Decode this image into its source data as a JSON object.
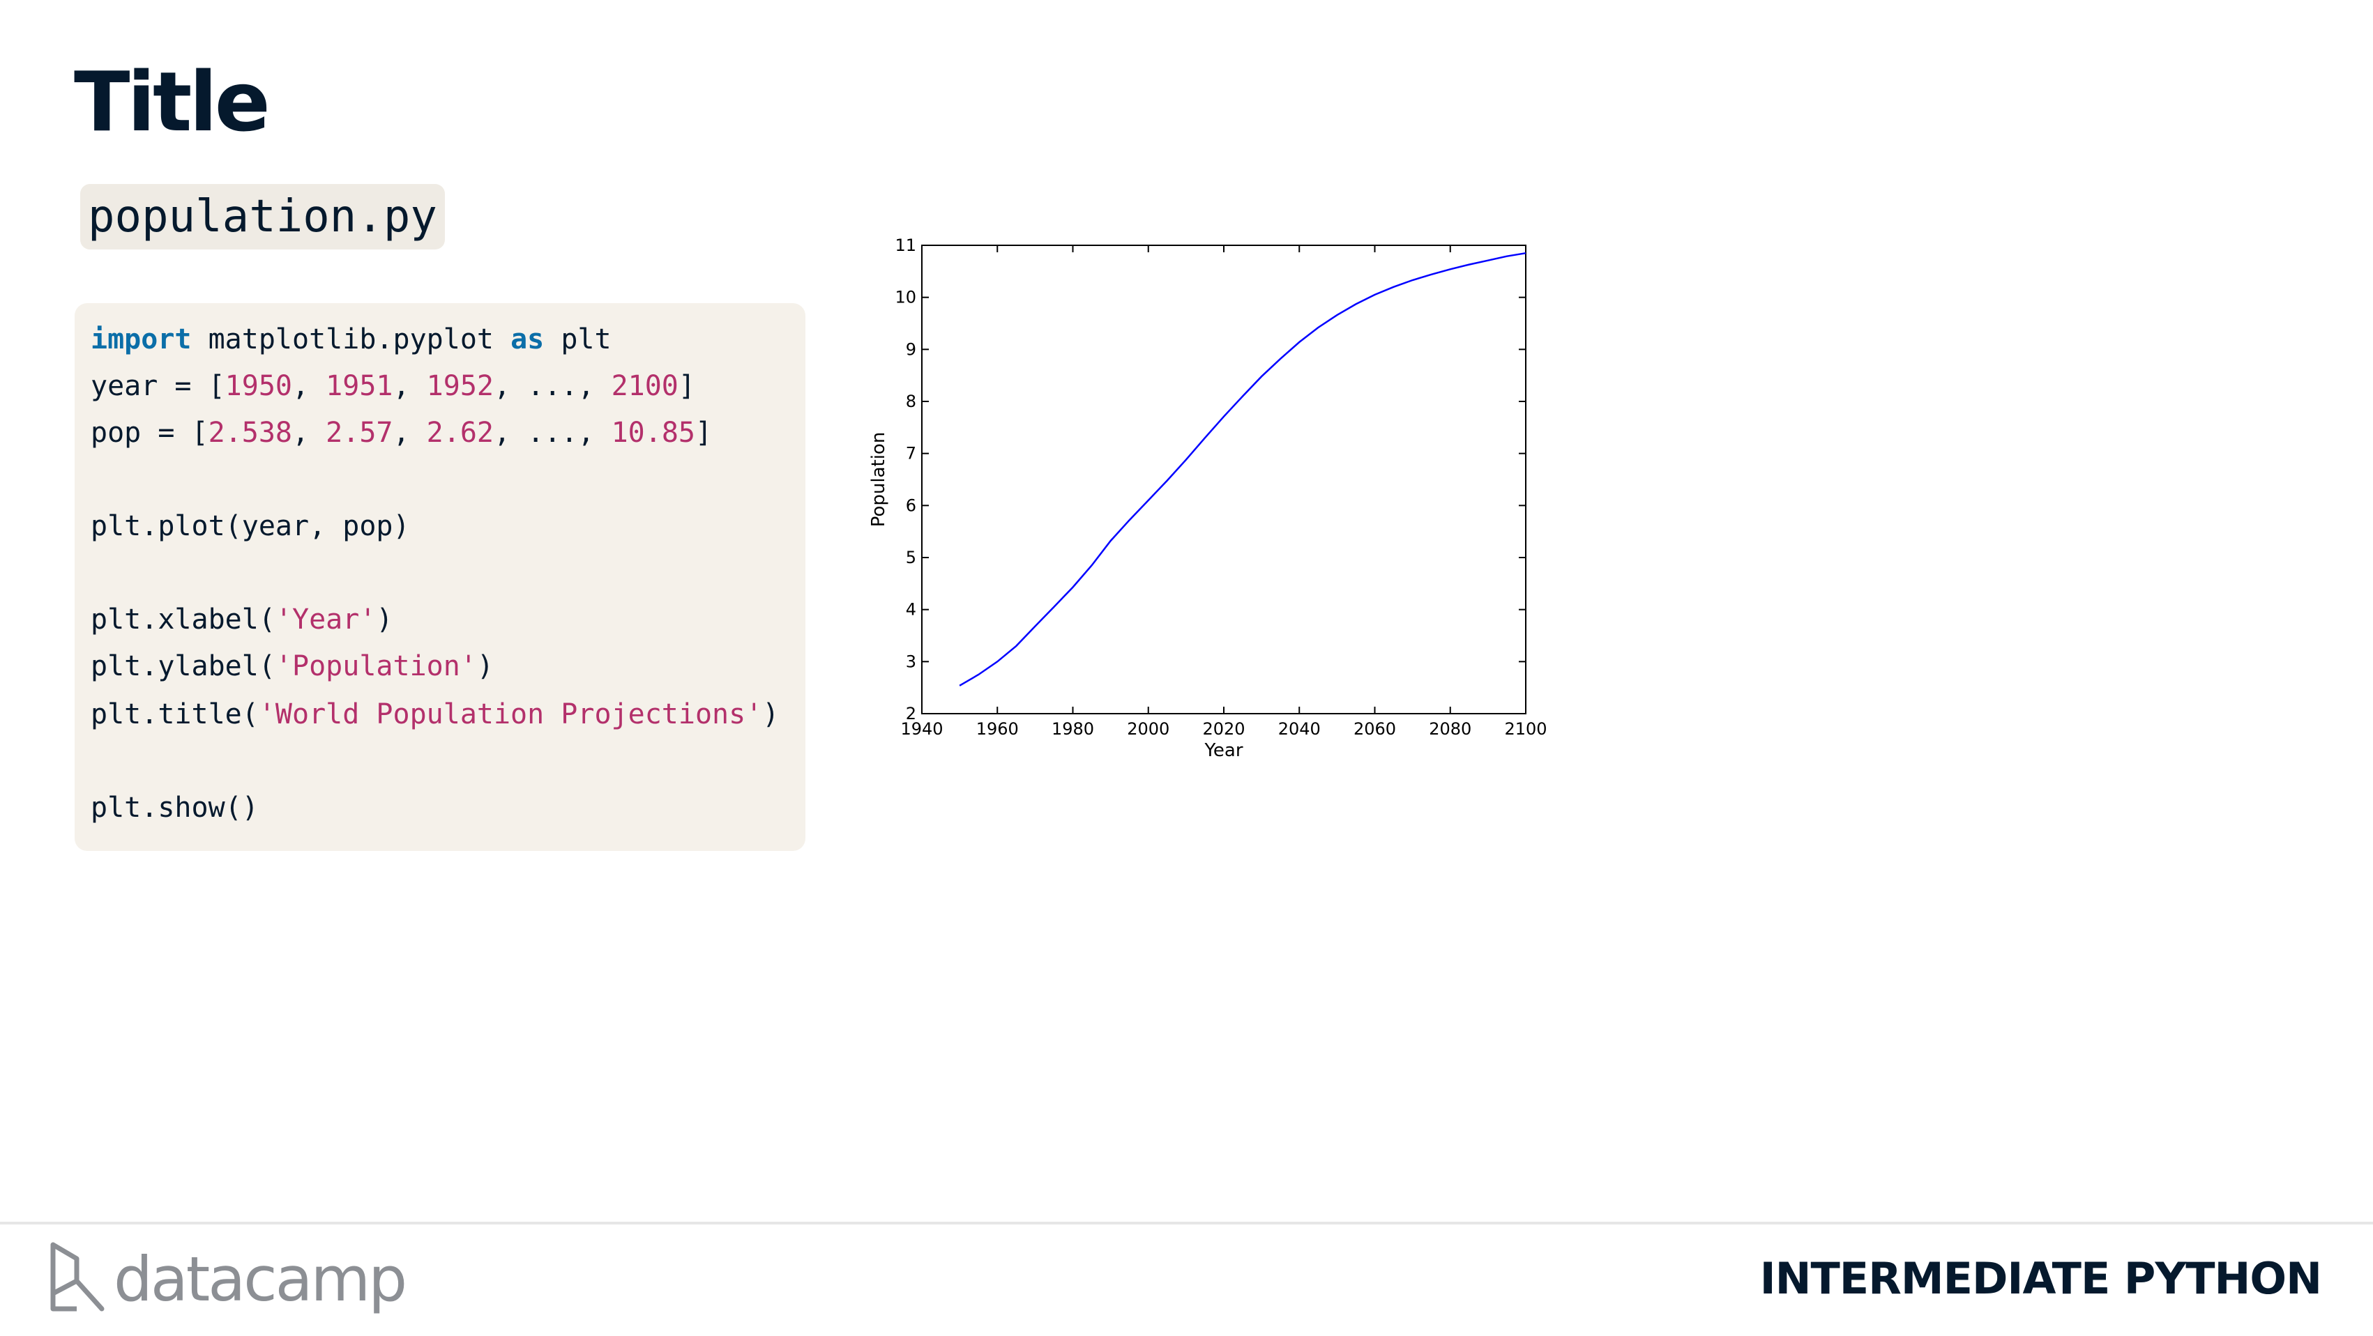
{
  "slide": {
    "title": "Title",
    "filename": "population.py"
  },
  "code": {
    "lines": [
      [
        {
          "t": "import",
          "c": "kw"
        },
        {
          "t": " matplotlib.pyplot "
        },
        {
          "t": "as",
          "c": "kw"
        },
        {
          "t": " plt"
        }
      ],
      [
        {
          "t": "year = ["
        },
        {
          "t": "1950",
          "c": "num"
        },
        {
          "t": ", "
        },
        {
          "t": "1951",
          "c": "num"
        },
        {
          "t": ", "
        },
        {
          "t": "1952",
          "c": "num"
        },
        {
          "t": ", ..., "
        },
        {
          "t": "2100",
          "c": "num"
        },
        {
          "t": "]"
        }
      ],
      [
        {
          "t": "pop = ["
        },
        {
          "t": "2.538",
          "c": "num"
        },
        {
          "t": ", "
        },
        {
          "t": "2.57",
          "c": "num"
        },
        {
          "t": ", "
        },
        {
          "t": "2.62",
          "c": "num"
        },
        {
          "t": ", ..., "
        },
        {
          "t": "10.85",
          "c": "num"
        },
        {
          "t": "]"
        }
      ],
      [],
      [
        {
          "t": "plt.plot(year, pop)"
        }
      ],
      [],
      [
        {
          "t": "plt.xlabel("
        },
        {
          "t": "'Year'",
          "c": "str"
        },
        {
          "t": ")"
        }
      ],
      [
        {
          "t": "plt.ylabel("
        },
        {
          "t": "'Population'",
          "c": "str"
        },
        {
          "t": ")"
        }
      ],
      [
        {
          "t": "plt.title("
        },
        {
          "t": "'World Population Projections'",
          "c": "str"
        },
        {
          "t": ")"
        }
      ],
      [],
      [
        {
          "t": "plt.show()"
        }
      ]
    ]
  },
  "chart_data": {
    "type": "line",
    "title": "",
    "xlabel": "Year",
    "ylabel": "Population",
    "xlim": [
      1940,
      2100
    ],
    "ylim": [
      2,
      11
    ],
    "xticks": [
      "1940",
      "1960",
      "1980",
      "2000",
      "2020",
      "2040",
      "2060",
      "2080",
      "2100"
    ],
    "yticks": [
      "2",
      "3",
      "4",
      "5",
      "6",
      "7",
      "8",
      "9",
      "10",
      "11"
    ],
    "grid": false,
    "line_color": "#0000ff",
    "series": [
      {
        "x": [
          1950,
          1955,
          1960,
          1965,
          1970,
          1975,
          1980,
          1985,
          1990,
          1995,
          2000,
          2005,
          2010,
          2015,
          2020,
          2025,
          2030,
          2035,
          2040,
          2045,
          2050,
          2055,
          2060,
          2065,
          2070,
          2075,
          2080,
          2085,
          2090,
          2095,
          2100
        ],
        "y": [
          2.538,
          2.75,
          3.0,
          3.3,
          3.68,
          4.05,
          4.43,
          4.85,
          5.32,
          5.72,
          6.1,
          6.48,
          6.88,
          7.3,
          7.71,
          8.1,
          8.48,
          8.82,
          9.14,
          9.42,
          9.66,
          9.87,
          10.05,
          10.2,
          10.33,
          10.44,
          10.54,
          10.63,
          10.71,
          10.79,
          10.85
        ]
      }
    ]
  },
  "footer": {
    "brand": "datacamp",
    "course": "INTERMEDIATE PYTHON"
  },
  "colors": {
    "title": "#05192d",
    "code_bg": "#f5f1ea",
    "keyword": "#0b6ea8",
    "literal": "#b3306b",
    "brand_gray": "#8c8f94"
  }
}
